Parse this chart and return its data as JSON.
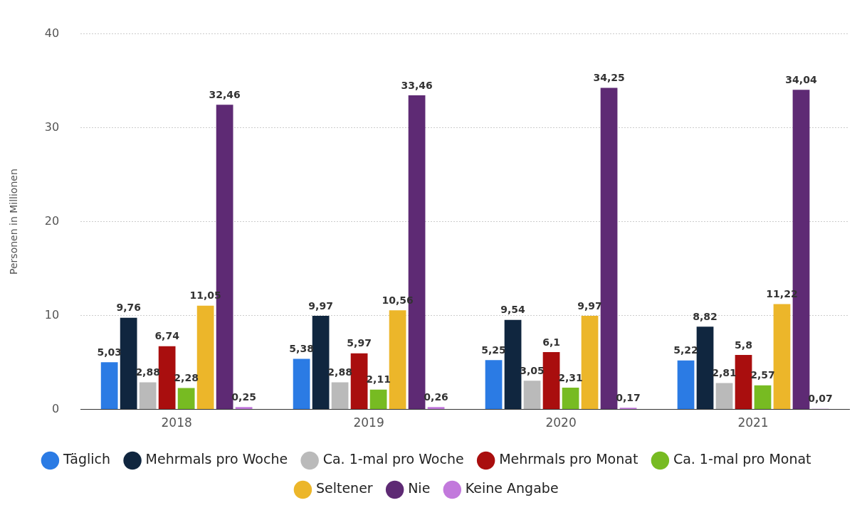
{
  "chart_data": {
    "type": "bar",
    "ylabel": "Personen in Millionen",
    "categories": [
      "2018",
      "2019",
      "2020",
      "2021"
    ],
    "series": [
      {
        "name": "Täglich",
        "color": "#2b7be4",
        "values": [
          5.03,
          5.38,
          5.25,
          5.22
        ],
        "value_labels": [
          "5,03",
          "5,38",
          "5,25",
          "5,22"
        ]
      },
      {
        "name": "Mehrmals pro Woche",
        "color": "#10263f",
        "values": [
          9.76,
          9.97,
          9.54,
          8.82
        ],
        "value_labels": [
          "9,76",
          "9,97",
          "9,54",
          "8,82"
        ]
      },
      {
        "name": "Ca. 1-mal pro Woche",
        "color": "#bababa",
        "values": [
          2.88,
          2.88,
          3.05,
          2.81
        ],
        "value_labels": [
          "2,88",
          "2,88",
          "3,05",
          "2,81"
        ]
      },
      {
        "name": "Mehrmals pro Monat",
        "color": "#a90e0e",
        "values": [
          6.74,
          5.97,
          6.1,
          5.8
        ],
        "value_labels": [
          "6,74",
          "5,97",
          "6,1",
          "5,8"
        ]
      },
      {
        "name": "Ca. 1-mal pro Monat",
        "color": "#77bb22",
        "values": [
          2.28,
          2.11,
          2.31,
          2.57
        ],
        "value_labels": [
          "2,28",
          "2,11",
          "2,31",
          "2,57"
        ]
      },
      {
        "name": "Seltener",
        "color": "#ecb62a",
        "values": [
          11.05,
          10.56,
          9.97,
          11.22
        ],
        "value_labels": [
          "11,05",
          "10,56",
          "9,97",
          "11,22"
        ]
      },
      {
        "name": "Nie",
        "color": "#5e2a74",
        "values": [
          32.46,
          33.46,
          34.25,
          34.04
        ],
        "value_labels": [
          "32,46",
          "33,46",
          "34,25",
          "34,04"
        ]
      },
      {
        "name": "Keine Angabe",
        "color": "#c279dc",
        "values": [
          0.25,
          0.26,
          0.17,
          0.07
        ],
        "value_labels": [
          "0,25",
          "0,26",
          "0,17",
          "0,07"
        ]
      }
    ],
    "ylim": [
      0,
      40
    ],
    "yticks": [
      0,
      10,
      20,
      30,
      40
    ],
    "grid": "y",
    "legend": "bottom",
    "marker": "circle"
  }
}
